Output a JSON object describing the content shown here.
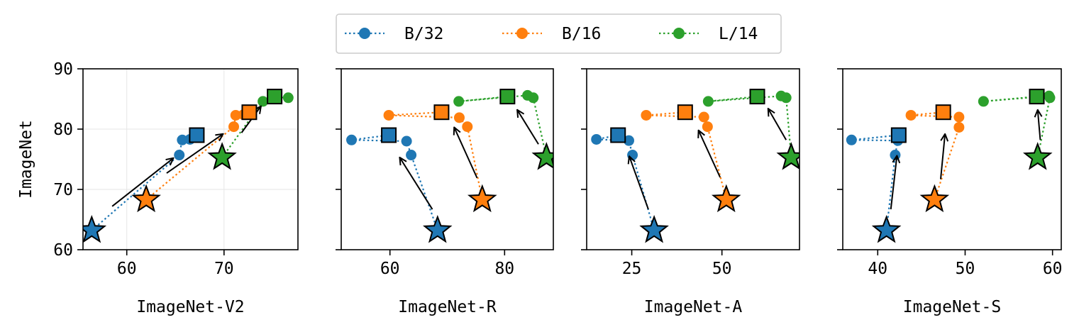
{
  "legend": {
    "position": "top-center",
    "entries": [
      {
        "name": "B/32",
        "color": "#1f77b4"
      },
      {
        "name": "B/16",
        "color": "#ff7f0e"
      },
      {
        "name": "L/14",
        "color": "#2ca02c"
      }
    ]
  },
  "chart_data": [
    {
      "type": "scatter",
      "xlabel": "ImageNet-V2",
      "ylabel": "ImageNet",
      "xlim": [
        55.5,
        77.6
      ],
      "ylim": [
        60,
        90
      ],
      "xticks": [
        60,
        70
      ],
      "yticks": [
        60,
        70,
        80,
        90
      ],
      "grid": true,
      "series": [
        {
          "name": "B/32",
          "color": "#1f77b4",
          "points": [
            [
              56.4,
              63.2
            ],
            [
              65.4,
              75.7
            ],
            [
              65.7,
              78.2
            ],
            [
              66.5,
              78.3
            ],
            [
              67.2,
              79.0
            ]
          ],
          "star": [
            56.4,
            63.2
          ],
          "square": [
            67.2,
            79.0
          ]
        },
        {
          "name": "B/16",
          "color": "#ff7f0e",
          "points": [
            [
              62.0,
              68.3
            ],
            [
              71.0,
              80.4
            ],
            [
              71.2,
              82.3
            ],
            [
              72.0,
              82.4
            ],
            [
              72.6,
              82.8
            ]
          ],
          "star": [
            62.0,
            68.3
          ],
          "square": [
            72.6,
            82.8
          ]
        },
        {
          "name": "L/14",
          "color": "#2ca02c",
          "points": [
            [
              69.8,
              75.3
            ],
            [
              74.0,
              84.6
            ],
            [
              75.2,
              85.3
            ],
            [
              76.6,
              85.2
            ],
            [
              75.2,
              85.4
            ]
          ],
          "star": [
            69.8,
            75.3
          ],
          "square": [
            75.2,
            85.4
          ]
        }
      ],
      "arrows": [
        [
          [
            58.5,
            67.2
          ],
          [
            64.8,
            75.2
          ]
        ],
        [
          [
            64.1,
            72.7
          ],
          [
            69.9,
            79.2
          ]
        ],
        [
          [
            71.8,
            79.4
          ],
          [
            73.8,
            83.8
          ]
        ]
      ]
    },
    {
      "type": "scatter",
      "xlabel": "ImageNet-R",
      "ylabel": "",
      "xlim": [
        51.5,
        88.5
      ],
      "ylim": [
        60,
        90
      ],
      "xticks": [
        60,
        80
      ],
      "yticks": [
        60,
        70,
        80,
        90
      ],
      "grid": false,
      "series": [
        {
          "name": "B/32",
          "color": "#1f77b4",
          "points": [
            [
              68.3,
              63.2
            ],
            [
              63.7,
              75.7
            ],
            [
              62.9,
              78.0
            ],
            [
              53.3,
              78.2
            ],
            [
              59.8,
              79.0
            ]
          ],
          "star": [
            68.3,
            63.2
          ],
          "square": [
            59.8,
            79.0
          ]
        },
        {
          "name": "B/16",
          "color": "#ff7f0e",
          "points": [
            [
              76.1,
              68.3
            ],
            [
              73.5,
              80.4
            ],
            [
              72.1,
              81.9
            ],
            [
              59.8,
              82.3
            ],
            [
              69.0,
              82.8
            ]
          ],
          "star": [
            76.1,
            68.3
          ],
          "square": [
            69.0,
            82.8
          ]
        },
        {
          "name": "L/14",
          "color": "#2ca02c",
          "points": [
            [
              87.3,
              75.3
            ],
            [
              85.0,
              85.2
            ],
            [
              84.0,
              85.6
            ],
            [
              72.0,
              84.6
            ],
            [
              80.5,
              85.4
            ]
          ],
          "star": [
            87.3,
            75.3
          ],
          "square": [
            80.5,
            85.4
          ]
        }
      ],
      "arrows": [
        [
          [
            67.4,
            66.7
          ],
          [
            61.7,
            75.3
          ]
        ],
        [
          [
            75.2,
            71.9
          ],
          [
            71.2,
            80.3
          ]
        ],
        [
          [
            85.9,
            77.5
          ],
          [
            82.2,
            83.2
          ]
        ]
      ]
    },
    {
      "type": "scatter",
      "xlabel": "ImageNet-A",
      "ylabel": "",
      "xlim": [
        12.5,
        71.5
      ],
      "ylim": [
        60,
        90
      ],
      "xticks": [
        25,
        50
      ],
      "yticks": [
        60,
        70,
        80,
        90
      ],
      "grid": false,
      "series": [
        {
          "name": "B/32",
          "color": "#1f77b4",
          "points": [
            [
              31.2,
              63.2
            ],
            [
              25.2,
              75.7
            ],
            [
              24.2,
              78.1
            ],
            [
              15.2,
              78.3
            ],
            [
              21.2,
              79.0
            ]
          ],
          "star": [
            31.2,
            63.2
          ],
          "square": [
            21.2,
            79.0
          ]
        },
        {
          "name": "B/16",
          "color": "#ff7f0e",
          "points": [
            [
              51.2,
              68.3
            ],
            [
              46.0,
              80.4
            ],
            [
              45.0,
              82.0
            ],
            [
              29.0,
              82.3
            ],
            [
              39.8,
              82.8
            ]
          ],
          "star": [
            51.2,
            68.3
          ],
          "square": [
            39.8,
            82.8
          ]
        },
        {
          "name": "L/14",
          "color": "#2ca02c",
          "points": [
            [
              69.2,
              75.3
            ],
            [
              67.8,
              85.2
            ],
            [
              66.4,
              85.5
            ],
            [
              46.2,
              84.6
            ],
            [
              59.8,
              85.4
            ]
          ],
          "star": [
            69.2,
            75.3
          ],
          "square": [
            59.8,
            85.4
          ]
        }
      ],
      "arrows": [
        [
          [
            29.6,
            66.7
          ],
          [
            24.3,
            75.5
          ]
        ],
        [
          [
            49.5,
            72.0
          ],
          [
            43.5,
            79.8
          ]
        ],
        [
          [
            67.8,
            78.2
          ],
          [
            62.8,
            83.4
          ]
        ]
      ]
    },
    {
      "type": "scatter",
      "xlabel": "ImageNet-S",
      "ylabel": "",
      "xlim": [
        36.0,
        61.0
      ],
      "ylim": [
        60,
        90
      ],
      "xticks": [
        40,
        50,
        60
      ],
      "yticks": [
        60,
        70,
        80,
        90
      ],
      "grid": false,
      "series": [
        {
          "name": "B/32",
          "color": "#1f77b4",
          "points": [
            [
              41.0,
              63.2
            ],
            [
              42.0,
              75.7
            ],
            [
              42.3,
              78.1
            ],
            [
              37.0,
              78.2
            ],
            [
              42.4,
              79.0
            ]
          ],
          "star": [
            41.0,
            63.2
          ],
          "square": [
            42.4,
            79.0
          ]
        },
        {
          "name": "B/16",
          "color": "#ff7f0e",
          "points": [
            [
              46.5,
              68.3
            ],
            [
              49.3,
              80.3
            ],
            [
              49.3,
              82.0
            ],
            [
              43.8,
              82.3
            ],
            [
              47.5,
              82.8
            ]
          ],
          "star": [
            46.5,
            68.3
          ],
          "square": [
            47.5,
            82.8
          ]
        },
        {
          "name": "L/14",
          "color": "#2ca02c",
          "points": [
            [
              58.3,
              75.3
            ],
            [
              59.7,
              85.2
            ],
            [
              59.6,
              85.5
            ],
            [
              52.1,
              84.6
            ],
            [
              58.2,
              85.4
            ]
          ],
          "star": [
            58.3,
            75.3
          ],
          "square": [
            58.2,
            85.4
          ]
        }
      ],
      "arrows": [
        [
          [
            41.5,
            66.7
          ],
          [
            42.2,
            75.6
          ]
        ],
        [
          [
            47.2,
            71.7
          ],
          [
            47.7,
            79.2
          ]
        ],
        [
          [
            58.6,
            78.2
          ],
          [
            58.3,
            83.2
          ]
        ]
      ]
    }
  ]
}
